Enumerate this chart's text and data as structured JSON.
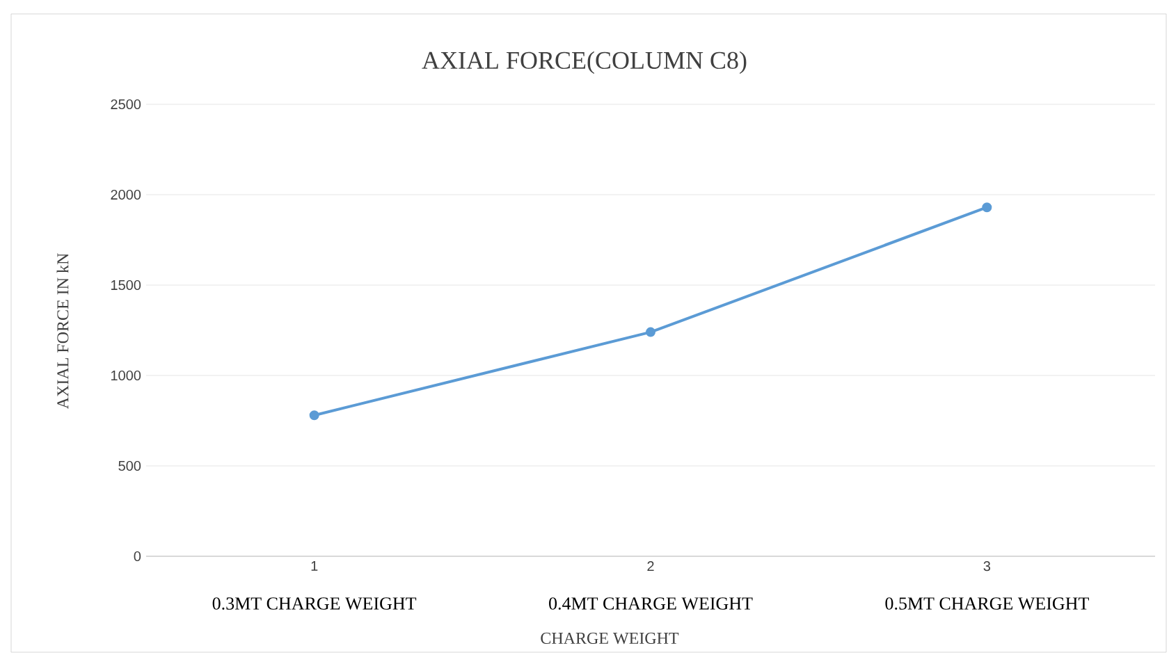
{
  "chart_data": {
    "type": "line",
    "title": "AXIAL FORCE(COLUMN C8)",
    "xlabel": "CHARGE WEIGHT",
    "ylabel": "AXIAL FORCE IN kN",
    "categories": [
      "1",
      "2",
      "3"
    ],
    "annotations": [
      "0.3MT CHARGE WEIGHT",
      "0.4MT CHARGE WEIGHT",
      "0.5MT CHARGE WEIGHT"
    ],
    "series": [
      {
        "color": "#5b9bd5",
        "values": [
          780,
          1240,
          1930
        ]
      }
    ],
    "ylim": [
      0,
      2500
    ],
    "yticks": [
      0,
      500,
      1000,
      1500,
      2000,
      2500
    ],
    "grid": "y",
    "marker": "circle",
    "line_style": "solid"
  }
}
